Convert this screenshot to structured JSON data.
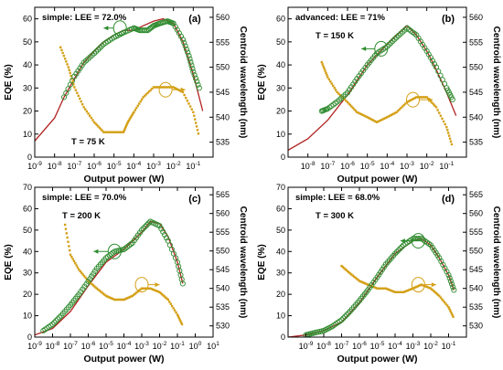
{
  "chart_data": [
    {
      "type": "scatter",
      "panel_label": "(a)",
      "annotation_model": "simple:  LEE = 72.0%",
      "annotation_temp": "T = 75 K",
      "xlabel": "Output power (W)",
      "ylabel": "EQE (%)",
      "ylabel_right": "Centroid wavelength (nm)",
      "x_scale": "log",
      "xlim": [
        1e-09,
        1
      ],
      "x_ticks": [
        "10-9",
        "10-8",
        "10-7",
        "10-6",
        "10-5",
        "10-4",
        "10-3",
        "10-2",
        "10-1"
      ],
      "ylim": [
        0,
        65
      ],
      "y_ticks": [
        "0",
        "10",
        "20",
        "30",
        "40",
        "50",
        "60"
      ],
      "y2lim": [
        532,
        562
      ],
      "y2_ticks": [
        "535",
        "540",
        "545",
        "550",
        "555",
        "560"
      ],
      "eqe_measured": {
        "x": [
          3e-08,
          1e-07,
          3e-07,
          1e-06,
          3e-06,
          1e-05,
          3e-05,
          0.0001,
          0.0002,
          0.0005,
          0.001,
          0.002,
          0.005,
          0.01,
          0.03,
          0.06,
          0.1,
          0.2
        ],
        "y": [
          26,
          35,
          41,
          45,
          49,
          52,
          54,
          56,
          55,
          55,
          57,
          58,
          59,
          58,
          51,
          44,
          37,
          30
        ]
      },
      "eqe_model": {
        "x": [
          1e-09,
          1e-08,
          3e-08,
          1e-07,
          3e-07,
          1e-06,
          3e-06,
          1e-05,
          3e-05,
          0.0001,
          0.0003,
          0.001,
          0.003,
          0.01,
          0.03,
          0.1,
          0.3
        ],
        "y": [
          7,
          17,
          26,
          34,
          41,
          46,
          50,
          53,
          55,
          55,
          57,
          59,
          60,
          58,
          50,
          36,
          20
        ]
      },
      "wavelength": {
        "x": [
          2e-08,
          5e-08,
          1e-07,
          3e-07,
          1e-06,
          3e-06,
          1e-05,
          3e-05,
          5e-05,
          0.0001,
          0.0003,
          0.001,
          0.003,
          0.01,
          0.03,
          0.1,
          0.2
        ],
        "y": [
          554,
          550,
          546,
          542,
          539,
          537,
          537,
          537,
          539,
          541,
          544,
          546,
          546,
          546,
          545,
          541,
          536
        ]
      },
      "markers": {
        "eqe_circle": [
          2e-05,
          56
        ],
        "eqe_arrow_to": [
          3e-06
        ],
        "wl_circle": [
          0.004,
          545.5
        ],
        "wl_arrow_to": [
          0.04
        ]
      }
    },
    {
      "type": "scatter",
      "panel_label": "(b)",
      "annotation_model": "advanced:  LEE = 71%",
      "annotation_temp": "T = 150 K",
      "xlabel": "Output power (W)",
      "ylabel": "EQE (%)",
      "ylabel_right": "Centroid wavelength (nm)",
      "x_scale": "log",
      "xlim": [
        1e-09,
        1
      ],
      "x_ticks": [
        "10-8",
        "10-7",
        "10-6",
        "10-5",
        "10-4",
        "10-3",
        "10-2",
        "10-1"
      ],
      "ylim": [
        0,
        65
      ],
      "y_ticks": [
        "0",
        "10",
        "20",
        "30",
        "40",
        "50",
        "60"
      ],
      "y2lim": [
        532,
        562
      ],
      "y2_ticks": [
        "535",
        "540",
        "545",
        "550",
        "555",
        "560"
      ],
      "eqe_measured": {
        "x": [
          5e-08,
          1e-07,
          3e-07,
          1e-06,
          3e-06,
          1e-05,
          3e-05,
          0.0001,
          0.0003,
          0.001,
          0.003,
          0.01,
          0.03,
          0.1,
          0.2
        ],
        "y": [
          20,
          21,
          24,
          28,
          34,
          40,
          45,
          48,
          52,
          56,
          53,
          46,
          39,
          30,
          25
        ]
      },
      "eqe_model": {
        "x": [
          1e-09,
          1e-08,
          1e-07,
          1e-06,
          1e-05,
          0.0001,
          0.0003,
          0.001,
          0.003,
          0.01,
          0.03,
          0.1,
          0.3
        ],
        "y": [
          3,
          8,
          16,
          27,
          40,
          49,
          53,
          57,
          53,
          46,
          38,
          28,
          18
        ]
      },
      "wavelength": {
        "x": [
          5e-08,
          1e-07,
          3e-07,
          1e-06,
          3e-06,
          1e-05,
          3e-05,
          0.0001,
          0.0003,
          0.001,
          0.003,
          0.01,
          0.03,
          0.1,
          0.2
        ],
        "y": [
          551,
          548,
          545,
          543,
          541,
          540,
          539,
          540,
          541,
          543,
          544,
          544,
          542,
          538,
          534
        ]
      },
      "markers": {
        "eqe_circle": [
          5e-05,
          47
        ],
        "eqe_arrow_to": [
          5e-06
        ],
        "wl_circle": [
          0.002,
          543.5
        ],
        "wl_arrow_to": [
          0.02
        ]
      }
    },
    {
      "type": "scatter",
      "panel_label": "(c)",
      "annotation_model": "simple:  LEE = 70.0%",
      "annotation_temp": "T = 200 K",
      "xlabel": "Output power (W)",
      "ylabel": "EQE (%)",
      "ylabel_right": "Centroid wavelength (nm)",
      "x_scale": "log",
      "xlim": [
        1e-09,
        10
      ],
      "x_ticks": [
        "10-9",
        "10-8",
        "10-7",
        "10-6",
        "10-5",
        "10-4",
        "10-3",
        "10-2",
        "10-1",
        "100",
        "101"
      ],
      "ylim": [
        0,
        70
      ],
      "y_ticks": [
        "0",
        "10",
        "20",
        "30",
        "40",
        "50",
        "60",
        "70"
      ],
      "y2lim": [
        527,
        567
      ],
      "y2_ticks": [
        "530",
        "535",
        "540",
        "545",
        "550",
        "555",
        "560",
        "565"
      ],
      "eqe_measured": {
        "x": [
          3e-09,
          1e-08,
          3e-08,
          1e-07,
          3e-07,
          1e-06,
          3e-06,
          1e-05,
          3e-05,
          0.0001,
          0.0003,
          0.001,
          0.003,
          0.01,
          0.03,
          0.1,
          0.2
        ],
        "y": [
          3,
          6,
          10,
          15,
          20,
          26,
          32,
          37,
          40,
          41,
          44,
          50,
          54,
          52,
          45,
          35,
          25
        ]
      },
      "eqe_model": {
        "x": [
          1e-09,
          1e-08,
          1e-07,
          1e-06,
          1e-05,
          0.0001,
          0.001,
          0.003,
          0.01,
          0.03,
          0.1,
          0.2
        ],
        "y": [
          1,
          4,
          12,
          24,
          35,
          41,
          49,
          54,
          53,
          47,
          35,
          25
        ]
      },
      "wavelength": {
        "x": [
          5e-08,
          1e-07,
          3e-07,
          1e-06,
          3e-06,
          1e-05,
          3e-05,
          0.0001,
          0.0003,
          0.001,
          0.003,
          0.01,
          0.03,
          0.1,
          0.2
        ],
        "y": [
          557,
          549,
          545,
          542,
          540,
          538,
          537,
          537,
          538,
          540,
          540,
          539,
          537,
          533,
          530
        ]
      },
      "markers": {
        "eqe_circle": [
          3e-05,
          40
        ],
        "eqe_arrow_to": [
          2e-06
        ],
        "wl_circle": [
          0.001,
          541
        ],
        "wl_arrow_to": [
          0.01
        ]
      }
    },
    {
      "type": "scatter",
      "panel_label": "(d)",
      "annotation_model": "simple:  LEE = 68.0%",
      "annotation_temp": "T = 300 K",
      "xlabel": "Output power (W)",
      "ylabel": "EQE (%)",
      "ylabel_right": "Centroid wavelength (nm)",
      "x_scale": "log",
      "xlim": [
        1e-10,
        1
      ],
      "x_ticks": [
        "10-9",
        "10-8",
        "10-7",
        "10-6",
        "10-5",
        "10-4",
        "10-3",
        "10-2",
        "10-1"
      ],
      "ylim": [
        0,
        70
      ],
      "y_ticks": [
        "0",
        "10",
        "20",
        "30",
        "40",
        "50",
        "60",
        "70"
      ],
      "y2lim": [
        527,
        567
      ],
      "y2_ticks": [
        "530",
        "535",
        "540",
        "545",
        "550",
        "555",
        "560",
        "565"
      ],
      "eqe_measured": {
        "x": [
          1e-09,
          3e-09,
          1e-08,
          3e-08,
          1e-07,
          3e-07,
          1e-06,
          3e-06,
          1e-05,
          3e-05,
          0.0001,
          0.0003,
          0.001,
          0.003,
          0.01,
          0.03,
          0.1,
          0.2
        ],
        "y": [
          1,
          2,
          3,
          5,
          8,
          12,
          17,
          22,
          28,
          34,
          39,
          43,
          46,
          46,
          43,
          37,
          29,
          22
        ]
      },
      "eqe_model": {
        "x": [
          1e-10,
          1e-09,
          1e-08,
          1e-07,
          1e-06,
          1e-05,
          0.0001,
          0.001,
          0.003,
          0.01,
          0.03,
          0.1,
          0.2
        ],
        "y": [
          0,
          1,
          3,
          7,
          16,
          28,
          39,
          45,
          46,
          43,
          37,
          29,
          22
        ]
      },
      "wavelength": {
        "x": [
          1e-07,
          3e-07,
          1e-06,
          3e-06,
          1e-05,
          3e-05,
          0.0001,
          0.0003,
          0.001,
          0.003,
          0.01,
          0.03,
          0.1,
          0.2
        ],
        "y": [
          546,
          544,
          542,
          541,
          540,
          540,
          539,
          539,
          540,
          541,
          540,
          538,
          535,
          532
        ]
      },
      "markers": {
        "eqe_circle": [
          0.002,
          45
        ],
        "eqe_arrow_to": [
          0.0002
        ],
        "wl_circle": [
          0.002,
          541
        ],
        "wl_arrow_to": [
          0.02
        ]
      }
    }
  ],
  "colors": {
    "measured": "#2e8b2e",
    "model": "#b22222",
    "wavelength": "#d4a017",
    "axis": "#000000"
  }
}
